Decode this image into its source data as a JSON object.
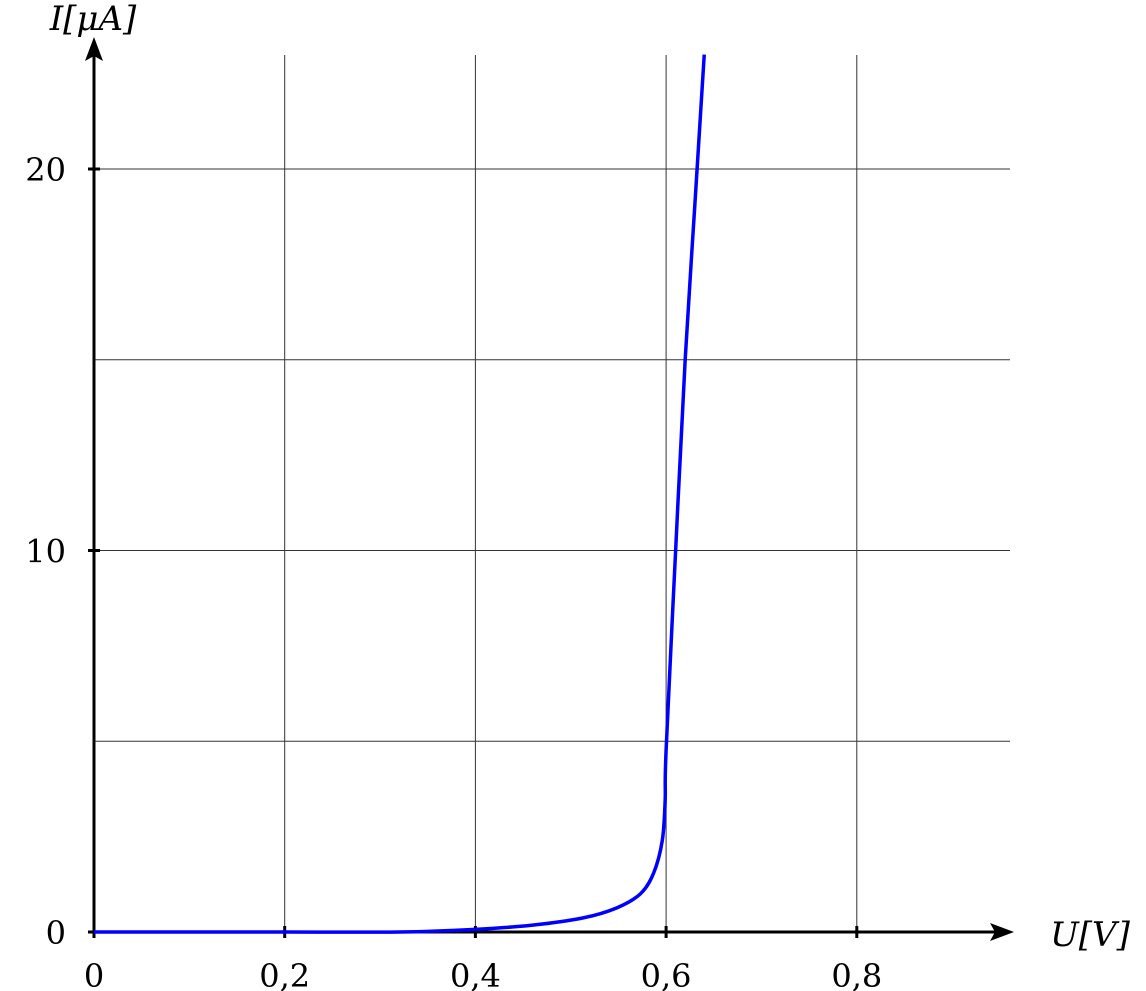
{
  "chart_data": {
    "type": "line",
    "xlabel": "U[V]",
    "ylabel": "I[μA]",
    "xlim": [
      0,
      0.96
    ],
    "ylim": [
      0,
      23
    ],
    "grid": true,
    "x_grid": [
      0.2,
      0.4,
      0.6,
      0.8
    ],
    "y_grid": [
      5,
      10,
      15,
      20
    ],
    "x_ticks": [
      {
        "value": 0,
        "label": "0"
      },
      {
        "value": 0.2,
        "label": "0,2"
      },
      {
        "value": 0.4,
        "label": "0,4"
      },
      {
        "value": 0.6,
        "label": "0,6"
      },
      {
        "value": 0.8,
        "label": "0,8"
      }
    ],
    "y_ticks": [
      {
        "value": 0,
        "label": "0"
      },
      {
        "value": 10,
        "label": "10"
      },
      {
        "value": 20,
        "label": "20"
      }
    ],
    "series": [
      {
        "color": "#0000ff",
        "x": [
          0,
          0.2,
          0.32,
          0.4,
          0.46,
          0.513,
          0.548,
          0.573,
          0.587,
          0.596,
          0.599,
          0.6,
          0.61,
          0.62,
          0.63,
          0.64
        ],
        "y": [
          0,
          0,
          0.0,
          0.07,
          0.18,
          0.37,
          0.63,
          1.0,
          1.55,
          2.4,
          3.45,
          4.77,
          10,
          15,
          19,
          23
        ]
      }
    ]
  }
}
